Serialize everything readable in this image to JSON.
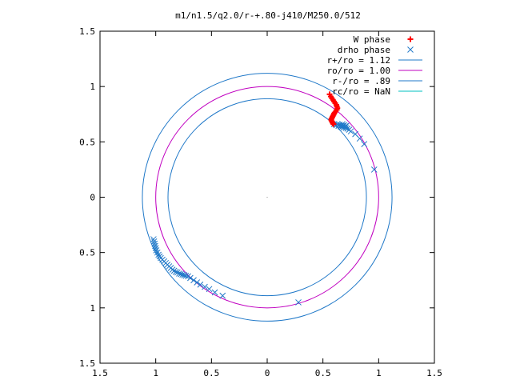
{
  "chart_data": {
    "type": "scatter",
    "title": "m1/n1.5/q2.0/r-+.80-j410/M250.0/512",
    "xlabel": "",
    "ylabel": "",
    "xlim": [
      -1.5,
      1.5
    ],
    "ylim": [
      -1.5,
      1.5
    ],
    "x_ticks": [
      -1.5,
      -1,
      -0.5,
      0,
      0.5,
      1,
      1.5
    ],
    "y_ticks": [
      -1.5,
      -1,
      -0.5,
      0,
      0.5,
      1,
      1.5
    ],
    "x_tick_labels": [
      "1.5",
      "1",
      "0.5",
      "0",
      "0.5",
      "1",
      "1.5"
    ],
    "y_tick_labels": [
      "1.5",
      "1",
      "0.5",
      "0",
      "0.5",
      "1",
      "1.5"
    ],
    "grid": false,
    "legend_position": "top-right",
    "series": [
      {
        "name": "W phase",
        "kind": "points",
        "marker": "plus",
        "color": "#ff0000",
        "points": [
          [
            0.56,
            0.93
          ],
          [
            0.57,
            0.91
          ],
          [
            0.58,
            0.895
          ],
          [
            0.59,
            0.88
          ],
          [
            0.6,
            0.865
          ],
          [
            0.61,
            0.85
          ],
          [
            0.62,
            0.835
          ],
          [
            0.625,
            0.82
          ],
          [
            0.63,
            0.805
          ],
          [
            0.625,
            0.79
          ],
          [
            0.615,
            0.775
          ],
          [
            0.605,
            0.765
          ],
          [
            0.6,
            0.755
          ],
          [
            0.595,
            0.745
          ],
          [
            0.59,
            0.735
          ],
          [
            0.585,
            0.725
          ],
          [
            0.58,
            0.715
          ],
          [
            0.575,
            0.705
          ],
          [
            0.575,
            0.695
          ],
          [
            0.58,
            0.685
          ],
          [
            0.585,
            0.675
          ],
          [
            0.59,
            0.665
          ],
          [
            0.595,
            0.66
          ]
        ]
      },
      {
        "name": "drho phase",
        "kind": "points",
        "marker": "cross",
        "color": "#1f78c8",
        "points": [
          [
            0.6,
            0.66
          ],
          [
            0.62,
            0.65
          ],
          [
            0.63,
            0.66
          ],
          [
            0.64,
            0.645
          ],
          [
            0.65,
            0.655
          ],
          [
            0.66,
            0.64
          ],
          [
            0.665,
            0.65
          ],
          [
            0.67,
            0.635
          ],
          [
            0.675,
            0.66
          ],
          [
            0.68,
            0.645
          ],
          [
            0.685,
            0.63
          ],
          [
            0.69,
            0.65
          ],
          [
            0.7,
            0.64
          ],
          [
            0.705,
            0.625
          ],
          [
            0.71,
            0.645
          ],
          [
            0.72,
            0.62
          ],
          [
            0.735,
            0.61
          ],
          [
            0.75,
            0.595
          ],
          [
            0.79,
            0.57
          ],
          [
            0.83,
            0.53
          ],
          [
            0.87,
            0.48
          ],
          [
            0.96,
            0.25
          ],
          [
            -1.02,
            -0.38
          ],
          [
            -1.015,
            -0.4
          ],
          [
            -1.01,
            -0.42
          ],
          [
            -1.005,
            -0.44
          ],
          [
            -1.0,
            -0.46
          ],
          [
            -0.995,
            -0.48
          ],
          [
            -0.985,
            -0.5
          ],
          [
            -0.975,
            -0.52
          ],
          [
            -0.965,
            -0.535
          ],
          [
            -0.955,
            -0.55
          ],
          [
            -0.94,
            -0.565
          ],
          [
            -0.925,
            -0.58
          ],
          [
            -0.91,
            -0.595
          ],
          [
            -0.895,
            -0.61
          ],
          [
            -0.88,
            -0.625
          ],
          [
            -0.865,
            -0.64
          ],
          [
            -0.85,
            -0.655
          ],
          [
            -0.835,
            -0.665
          ],
          [
            -0.82,
            -0.675
          ],
          [
            -0.805,
            -0.68
          ],
          [
            -0.79,
            -0.69
          ],
          [
            -0.775,
            -0.695
          ],
          [
            -0.76,
            -0.7
          ],
          [
            -0.745,
            -0.705
          ],
          [
            -0.73,
            -0.71
          ],
          [
            -0.71,
            -0.715
          ],
          [
            -0.69,
            -0.73
          ],
          [
            -0.66,
            -0.75
          ],
          [
            -0.63,
            -0.77
          ],
          [
            -0.6,
            -0.79
          ],
          [
            -0.56,
            -0.81
          ],
          [
            -0.52,
            -0.83
          ],
          [
            -0.47,
            -0.86
          ],
          [
            -0.4,
            -0.89
          ],
          [
            0.28,
            -0.95
          ]
        ]
      },
      {
        "name": "r+/ro = 1.12",
        "kind": "circle",
        "radius": 1.12,
        "color": "#1f78c8"
      },
      {
        "name": "ro/ro = 1.00",
        "kind": "circle",
        "radius": 1.0,
        "color": "#c000c0"
      },
      {
        "name": "r-/ro = .89",
        "kind": "circle",
        "radius": 0.89,
        "color": "#1f78c8"
      },
      {
        "name": "rc/ro = NaN",
        "kind": "circle",
        "radius": null,
        "color": "#00c0c0"
      }
    ]
  }
}
